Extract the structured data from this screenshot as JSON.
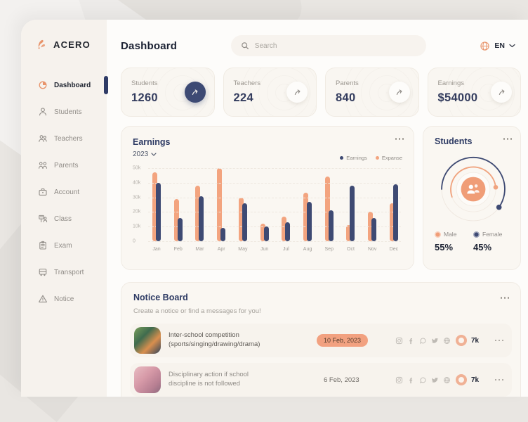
{
  "sidebar": {
    "logo_text": "ACERO",
    "items": [
      {
        "label": "Dashboard",
        "icon": "dashboard",
        "active": true
      },
      {
        "label": "Students",
        "icon": "student",
        "active": false
      },
      {
        "label": "Teachers",
        "icon": "teacher",
        "active": false
      },
      {
        "label": "Parents",
        "icon": "parents",
        "active": false
      },
      {
        "label": "Account",
        "icon": "briefcase",
        "active": false
      },
      {
        "label": "Class",
        "icon": "class",
        "active": false
      },
      {
        "label": "Exam",
        "icon": "exam",
        "active": false
      },
      {
        "label": "Transport",
        "icon": "bus",
        "active": false
      },
      {
        "label": "Notice",
        "icon": "warning",
        "active": false
      }
    ]
  },
  "header": {
    "title": "Dashboard",
    "search_placeholder": "Search",
    "language": "EN"
  },
  "stats": [
    {
      "label": "Students",
      "value": "1260",
      "accent": true
    },
    {
      "label": "Teachers",
      "value": "224",
      "accent": false
    },
    {
      "label": "Parents",
      "value": "840",
      "accent": false
    },
    {
      "label": "Earnings",
      "value": "$54000",
      "accent": false
    }
  ],
  "earnings_card": {
    "title": "Earnings",
    "year": "2023",
    "legend": [
      {
        "label": "Earnings",
        "color": "#3e4a73"
      },
      {
        "label": "Expanse",
        "color": "#f3a47f"
      }
    ]
  },
  "chart_data": [
    {
      "type": "bar",
      "title": "Earnings",
      "categories": [
        "Jan",
        "Feb",
        "Mar",
        "Apr",
        "May",
        "Jun",
        "Jul",
        "Aug",
        "Sep",
        "Oct",
        "Nov",
        "Dec"
      ],
      "series": [
        {
          "name": "Expanse",
          "color": "#f3a47f",
          "values": [
            47000,
            29000,
            38000,
            50000,
            30000,
            12000,
            17000,
            33000,
            44000,
            11000,
            20000,
            26000
          ]
        },
        {
          "name": "Earnings",
          "color": "#3e4a73",
          "values": [
            40000,
            16000,
            31000,
            9000,
            26000,
            10000,
            13000,
            27000,
            21000,
            38000,
            16000,
            39000
          ]
        }
      ],
      "xlabel": "",
      "ylabel": "",
      "ylim": [
        0,
        50000
      ],
      "yticks": [
        "50k",
        "40k",
        "30k",
        "20k",
        "10k",
        "0"
      ],
      "grid": true,
      "legend_position": "top-right"
    },
    {
      "type": "pie",
      "title": "Students",
      "categories": [
        "Male",
        "Female"
      ],
      "values": [
        55,
        45
      ],
      "colors": [
        "#f09d77",
        "#3e4a73"
      ]
    }
  ],
  "students_card": {
    "title": "Students",
    "male_label": "Male",
    "male_value": "55%",
    "male_color": "#f09d77",
    "female_label": "Female",
    "female_value": "45%",
    "female_color": "#3e4a73"
  },
  "notice_board": {
    "title": "Notice Board",
    "subtitle": "Create a notice or find a messages for you!",
    "notices": [
      {
        "title_line1": "Inter-school competition",
        "title_line2": "(sports/singing/drawing/drama)",
        "date": "10 Feb, 2023",
        "date_badge": true,
        "views": "7k",
        "social_icons": [
          "instagram",
          "facebook",
          "chat",
          "twitter",
          "web"
        ]
      },
      {
        "title_line1": "Disciplinary action if school",
        "title_line2": "discipline is not followed",
        "date": "6 Feb, 2023",
        "date_badge": false,
        "views": "7k",
        "social_icons": [
          "instagram",
          "facebook",
          "chat",
          "twitter",
          "web"
        ]
      }
    ]
  },
  "colors": {
    "accent_orange": "#f3a47f",
    "accent_navy": "#3e4a73",
    "sidebar_bg": "#f6f2ed",
    "card_bg": "#faf7f2",
    "badge_bg": "#f2a180",
    "indicator": "#2f3b66"
  }
}
